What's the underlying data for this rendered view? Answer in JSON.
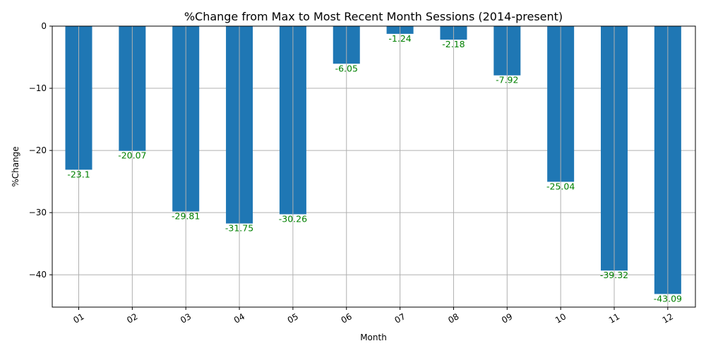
{
  "chart_data": {
    "type": "bar",
    "title": "%Change from Max to Most Recent Month Sessions (2014-present)",
    "xlabel": "Month",
    "ylabel": "%Change",
    "categories": [
      "01",
      "02",
      "03",
      "04",
      "05",
      "06",
      "07",
      "08",
      "09",
      "10",
      "11",
      "12"
    ],
    "values": [
      -23.1,
      -20.07,
      -29.81,
      -31.75,
      -30.26,
      -6.05,
      -1.24,
      -2.18,
      -7.92,
      -25.04,
      -39.32,
      -43.09
    ],
    "value_labels": [
      "-23.1",
      "-20.07",
      "-29.81",
      "-31.75",
      "-30.26",
      "-6.05",
      "-1.24",
      "-2.18",
      "-7.92",
      "-25.04",
      "-39.32",
      "-43.09"
    ],
    "ylim": [
      -45.2,
      0
    ],
    "yticks": [
      0,
      -10,
      -20,
      -30,
      -40
    ],
    "ytick_labels": [
      "0",
      "−10",
      "−20",
      "−30",
      "−40"
    ],
    "grid": true,
    "bar_color": "#1f77b4",
    "label_color": "#008000",
    "grid_color": "#b0b0b0",
    "xtick_rotation_deg": 30
  }
}
